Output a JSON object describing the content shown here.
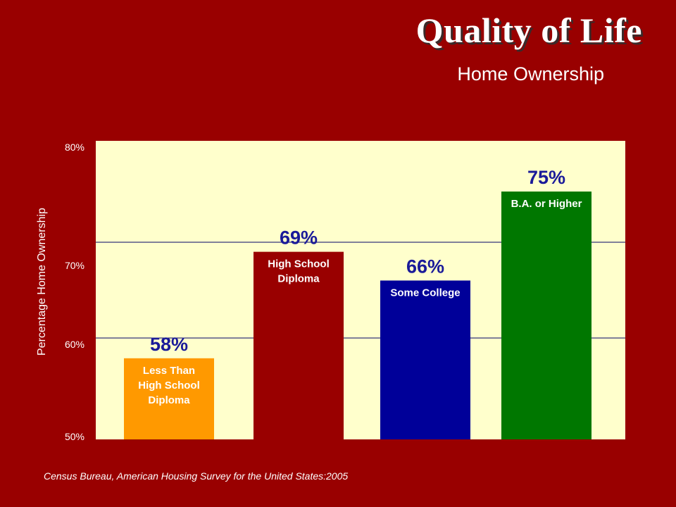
{
  "title": "Quality of Life",
  "subtitle": "Home Ownership",
  "source": "Census Bureau, American Housing Survey for the United States:2005",
  "colors": {
    "background": "#990000",
    "plot_area": "#ffffcc",
    "value_label": "#1a1a99"
  },
  "chart_data": {
    "type": "bar",
    "ylabel": "Percentage Home Ownership",
    "ylim": [
      50,
      80
    ],
    "y_ticks": [
      {
        "value": 50,
        "label": "50%"
      },
      {
        "value": 60,
        "label": "60%"
      },
      {
        "value": 70,
        "label": "70%"
      },
      {
        "value": 80,
        "label": "80%"
      }
    ],
    "gridlines": [
      60,
      70
    ],
    "bars": [
      {
        "category": "Less Than High School Diploma",
        "label_lines": [
          "Less Than",
          "High School",
          "Diploma"
        ],
        "value": 58,
        "value_label": "58%",
        "color": "#ff9900"
      },
      {
        "category": "High School Diploma",
        "label_lines": [
          "High School",
          "Diploma"
        ],
        "value": 69,
        "value_label": "69%",
        "color": "#990000"
      },
      {
        "category": "Some College",
        "label_lines": [
          "Some College"
        ],
        "value": 66,
        "value_label": "66%",
        "color": "#000099"
      },
      {
        "category": "B.A. or Higher",
        "label_lines": [
          "B.A. or Higher"
        ],
        "value": 75,
        "value_label": "75%",
        "color": "#007700"
      }
    ]
  }
}
